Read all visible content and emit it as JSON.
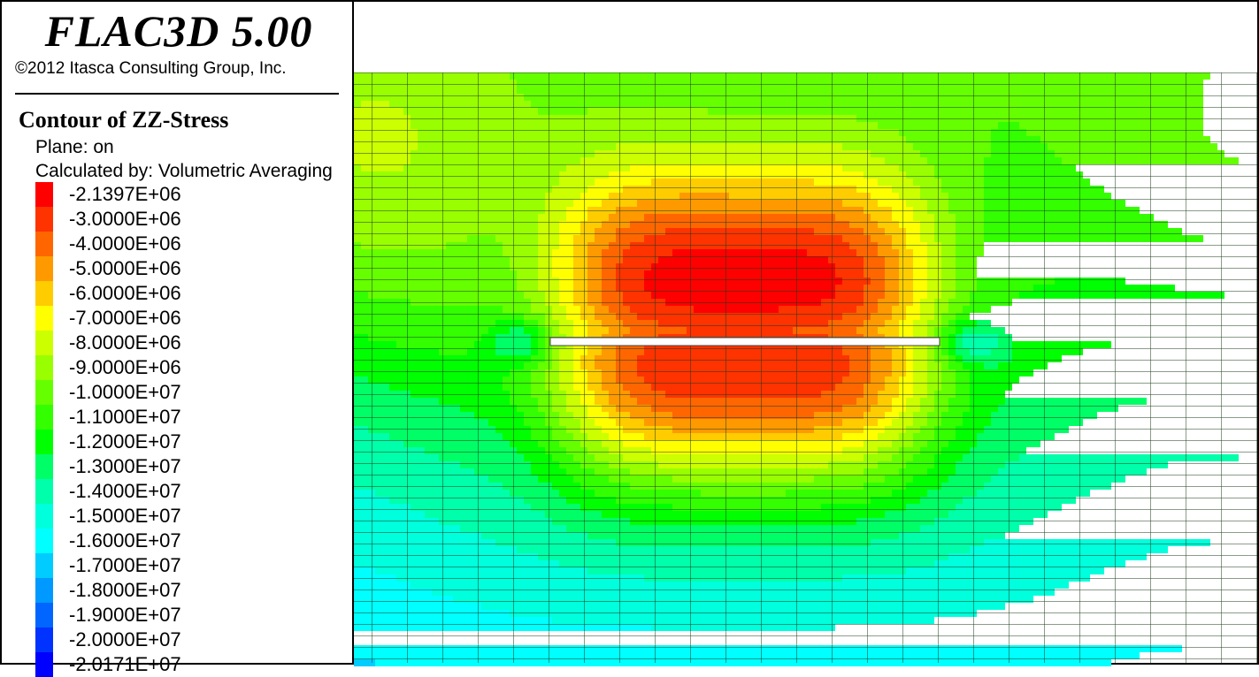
{
  "app": {
    "title": "FLAC3D 5.00",
    "copyright": "©2012 Itasca Consulting Group, Inc."
  },
  "legend": {
    "contour_title": "Contour of ZZ-Stress",
    "plane": "Plane: on",
    "calculated_by": "Calculated by: Volumetric Averaging",
    "scale": [
      {
        "label": "-2.1397E+06",
        "color": "#ff0000"
      },
      {
        "label": "-3.0000E+06",
        "color": "#ff3300"
      },
      {
        "label": "-4.0000E+06",
        "color": "#ff6600"
      },
      {
        "label": "-5.0000E+06",
        "color": "#ff9900"
      },
      {
        "label": "-6.0000E+06",
        "color": "#ffcc00"
      },
      {
        "label": "-7.0000E+06",
        "color": "#ffff00"
      },
      {
        "label": "-8.0000E+06",
        "color": "#ccff00"
      },
      {
        "label": "-9.0000E+06",
        "color": "#99ff00"
      },
      {
        "label": "-1.0000E+07",
        "color": "#66ff00"
      },
      {
        "label": "-1.1000E+07",
        "color": "#33ff00"
      },
      {
        "label": "-1.2000E+07",
        "color": "#00ff00"
      },
      {
        "label": "-1.3000E+07",
        "color": "#00ff66"
      },
      {
        "label": "-1.4000E+07",
        "color": "#00ffaa"
      },
      {
        "label": "-1.5000E+07",
        "color": "#00ffdd"
      },
      {
        "label": "-1.6000E+07",
        "color": "#00ffff"
      },
      {
        "label": "-1.7000E+07",
        "color": "#00ccff"
      },
      {
        "label": "-1.8000E+07",
        "color": "#0099ff"
      },
      {
        "label": "-1.9000E+07",
        "color": "#0066ff"
      },
      {
        "label": "-2.0000E+07",
        "color": "#0033ff"
      },
      {
        "label": "-2.0171E+07",
        "color": "#0000ff"
      }
    ]
  }
}
